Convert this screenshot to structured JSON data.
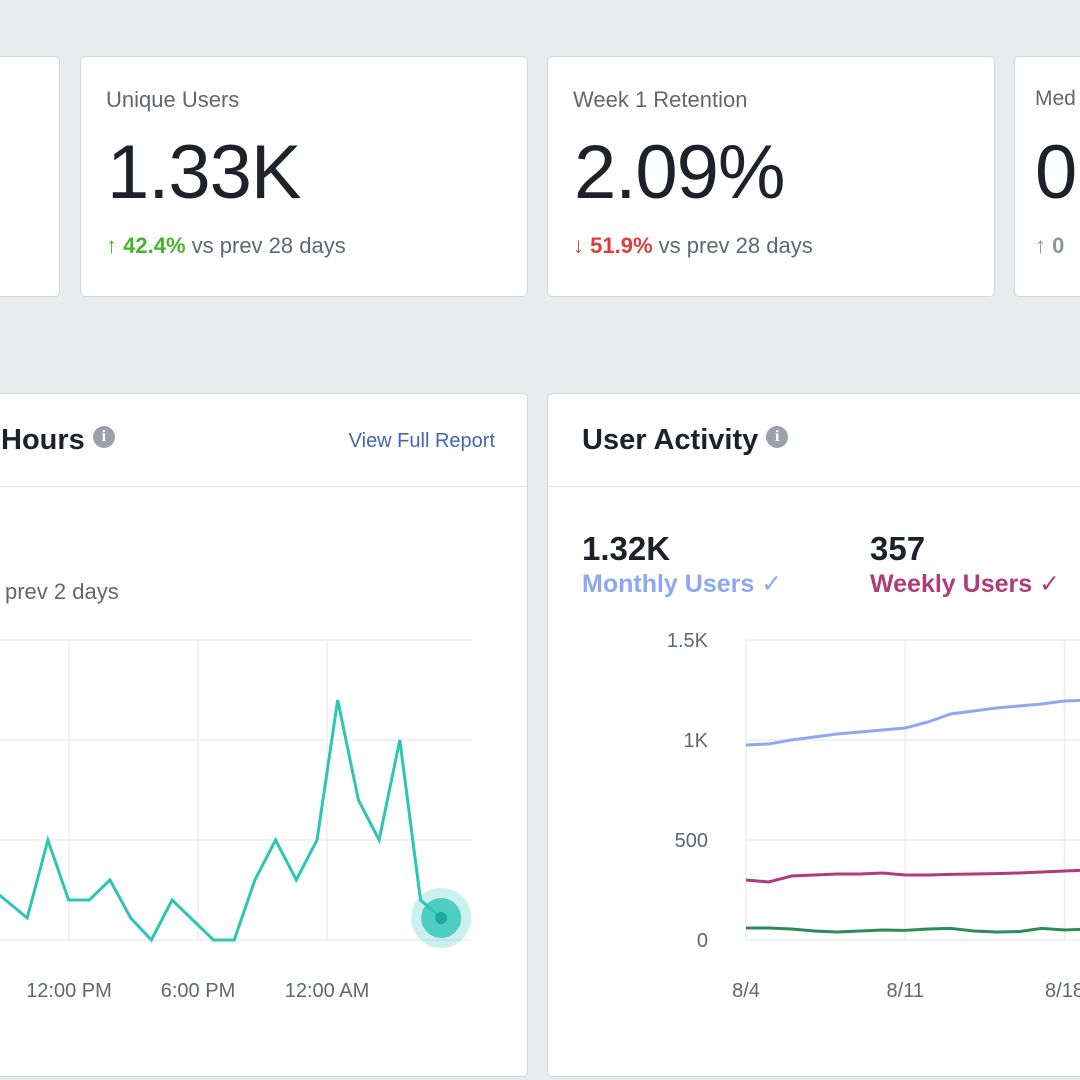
{
  "kpis": [
    {
      "label": "Unique Users",
      "value": "1.33K",
      "delta": "42.4%",
      "direction": "up",
      "suffix": "vs prev 28 days"
    },
    {
      "label": "Week 1 Retention",
      "value": "2.09%",
      "delta": "51.9%",
      "direction": "down",
      "suffix": "vs prev 28 days"
    },
    {
      "label": "Med",
      "value": "0",
      "delta": "0",
      "direction": "up-neutral",
      "suffix": ""
    }
  ],
  "active_hours": {
    "title": "Hours",
    "link": "View Full Report",
    "subtitle": "prev 2 days",
    "icon": "info-icon",
    "color": "#2ec4b6"
  },
  "user_activity": {
    "title": "User Activity",
    "icon": "info-icon",
    "metrics": [
      {
        "value": "1.32K",
        "label": "Monthly Users",
        "color": "#8ea8f0",
        "check": "✓"
      },
      {
        "value": "357",
        "label": "Weekly Users",
        "color": "#b03a7a",
        "check": "✓"
      }
    ]
  },
  "chart_data": [
    {
      "type": "line",
      "title": "Hours",
      "x_tick_labels": [
        "12:00 PM",
        "6:00 PM",
        "12:00 AM"
      ],
      "series": [
        {
          "values": [
            0.45,
            0.22,
            1,
            0.4,
            0.4,
            0.6,
            0.22,
            0,
            0.4,
            0.2,
            0,
            0,
            0.6,
            1,
            0.6,
            1,
            2.4,
            1.4,
            1,
            2,
            0.4,
            0.22
          ],
          "color": "#2ec4b6"
        }
      ],
      "grid": true,
      "ylim": [
        0,
        3
      ]
    },
    {
      "type": "line",
      "title": "User Activity",
      "x": [
        "8/4",
        "8/5",
        "8/6",
        "8/7",
        "8/8",
        "8/9",
        "8/10",
        "8/11",
        "8/12",
        "8/13",
        "8/14",
        "8/15",
        "8/16",
        "8/17",
        "8/18",
        "8/19"
      ],
      "x_tick_labels": [
        "8/4",
        "8/11",
        "8/18"
      ],
      "y_tick_labels": [
        "0",
        "500",
        "1K",
        "1.5K"
      ],
      "ylim": [
        0,
        1500
      ],
      "grid": true,
      "series": [
        {
          "name": "Monthly Users",
          "color": "#8ea8f0",
          "values": [
            975,
            980,
            1000,
            1015,
            1030,
            1040,
            1050,
            1060,
            1090,
            1130,
            1145,
            1160,
            1170,
            1180,
            1195,
            1200
          ]
        },
        {
          "name": "Weekly Users",
          "color": "#b03a7a",
          "values": [
            300,
            290,
            320,
            325,
            330,
            330,
            335,
            325,
            325,
            328,
            330,
            332,
            335,
            340,
            345,
            350
          ]
        },
        {
          "color": "#2e8b57",
          "values": [
            60,
            60,
            55,
            45,
            40,
            45,
            50,
            48,
            55,
            58,
            45,
            40,
            42,
            58,
            50,
            55
          ]
        }
      ]
    }
  ]
}
